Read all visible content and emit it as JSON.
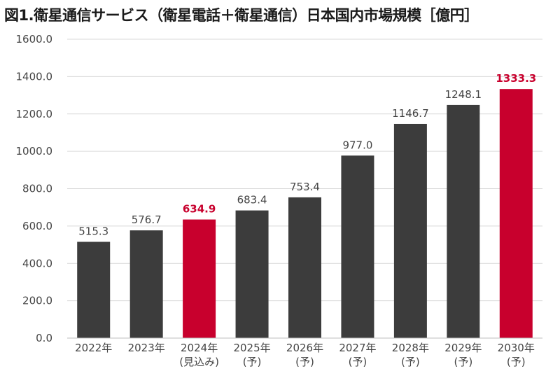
{
  "title": "図1.衛星通信サービス（衛星電話＋衛星通信）日本国内市場規模［億円］",
  "chart_data": {
    "type": "bar",
    "title": "図1.衛星通信サービス（衛星電話＋衛星通信）日本国内市場規模［億円］",
    "xlabel": "",
    "ylabel": "",
    "ylim": [
      0,
      1600
    ],
    "y_ticks": [
      "0.0",
      "200.0",
      "400.0",
      "600.0",
      "800.0",
      "1000.0",
      "1200.0",
      "1400.0",
      "1600.0"
    ],
    "grid": true,
    "categories": [
      [
        "2022年"
      ],
      [
        "2023年"
      ],
      [
        "2024年",
        "(見込み)"
      ],
      [
        "2025年",
        "(予)"
      ],
      [
        "2026年",
        "(予)"
      ],
      [
        "2027年",
        "(予)"
      ],
      [
        "2028年",
        "(予)"
      ],
      [
        "2029年",
        "(予)"
      ],
      [
        "2030年",
        "(予)"
      ]
    ],
    "values": [
      515.3,
      576.7,
      634.9,
      683.4,
      753.4,
      977.0,
      1146.7,
      1248.1,
      1333.3
    ],
    "value_labels": [
      "515.3",
      "576.7",
      "634.9",
      "683.4",
      "753.4",
      "977.0",
      "1146.7",
      "1248.1",
      "1333.3"
    ],
    "highlighted": [
      false,
      false,
      true,
      false,
      false,
      false,
      false,
      false,
      true
    ],
    "colors": {
      "bar": "#3c3c3c",
      "highlight": "#c8002d",
      "grid": "#d9d9d9",
      "axis": "#bfbfbf"
    }
  }
}
